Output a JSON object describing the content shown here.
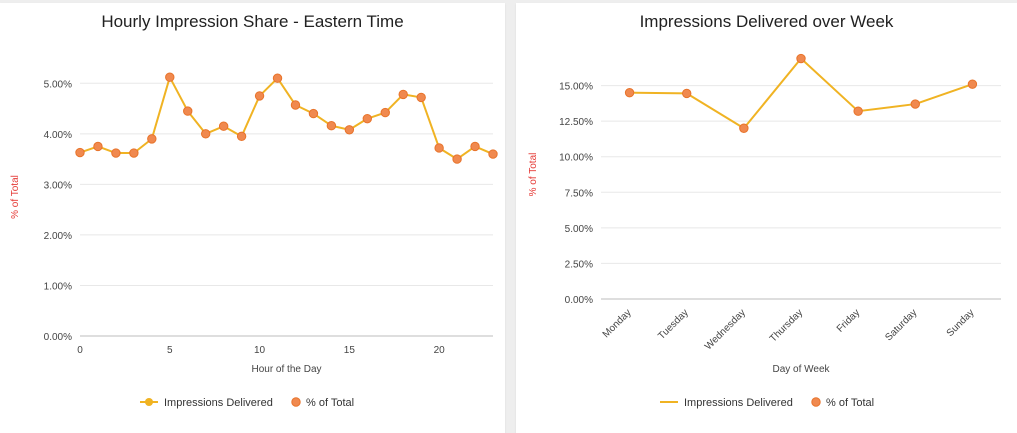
{
  "chart_data": [
    {
      "type": "line",
      "title": "Hourly Impression Share - Eastern Time",
      "xlabel": "Hour of the Day",
      "ylabel": "% of Total",
      "x": [
        0,
        1,
        2,
        3,
        4,
        5,
        6,
        7,
        8,
        9,
        10,
        11,
        12,
        13,
        14,
        15,
        16,
        17,
        18,
        19,
        20,
        21,
        22,
        23
      ],
      "xticks": [
        0,
        5,
        10,
        15,
        20
      ],
      "yticks": [
        "0.00%",
        "1.00%",
        "2.00%",
        "3.00%",
        "4.00%",
        "5.00%"
      ],
      "ylim": [
        0,
        5.5
      ],
      "series": [
        {
          "name": "Impressions Delivered",
          "style": "line",
          "values": [
            3.63,
            3.75,
            3.62,
            3.62,
            3.9,
            5.12,
            4.45,
            4.0,
            4.15,
            3.95,
            4.75,
            5.1,
            4.57,
            4.4,
            4.16,
            4.08,
            4.3,
            4.42,
            4.78,
            4.72,
            3.72,
            3.5,
            3.75,
            3.6
          ]
        },
        {
          "name": "% of Total",
          "style": "points",
          "values": [
            3.63,
            3.75,
            3.62,
            3.62,
            3.9,
            5.12,
            4.45,
            4.0,
            4.15,
            3.95,
            4.75,
            5.1,
            4.57,
            4.4,
            4.16,
            4.08,
            4.3,
            4.42,
            4.78,
            4.72,
            3.72,
            3.5,
            3.75,
            3.6
          ]
        }
      ],
      "legend": [
        {
          "label": "Impressions Delivered",
          "marker": "line-dot"
        },
        {
          "label": "% of Total",
          "marker": "dot"
        }
      ],
      "legend_position": "bottom",
      "colors": {
        "line": "#f0b323",
        "point": "#f0894f",
        "point_stroke": "#e8732a",
        "ylabel": "#e53935"
      }
    },
    {
      "type": "line",
      "title": "Impressions Delivered over Week",
      "xlabel": "Day of Week",
      "ylabel": "% of Total",
      "categories": [
        "Monday",
        "Tuesday",
        "Wednesday",
        "Thursday",
        "Friday",
        "Saturday",
        "Sunday"
      ],
      "yticks": [
        "0.00%",
        "2.50%",
        "5.00%",
        "7.50%",
        "10.00%",
        "12.50%",
        "15.00%"
      ],
      "ylim": [
        0,
        17.5
      ],
      "series": [
        {
          "name": "Impressions Delivered",
          "style": "line",
          "values": [
            14.5,
            14.45,
            12.0,
            16.9,
            13.2,
            13.7,
            15.1
          ]
        },
        {
          "name": "% of Total",
          "style": "points",
          "values": [
            14.5,
            14.45,
            12.0,
            16.9,
            13.2,
            13.7,
            15.1
          ]
        }
      ],
      "legend": [
        {
          "label": "Impressions Delivered",
          "marker": "line"
        },
        {
          "label": "% of Total",
          "marker": "dot"
        }
      ],
      "legend_position": "bottom",
      "colors": {
        "line": "#f0b323",
        "point": "#f0894f",
        "point_stroke": "#e8732a",
        "ylabel": "#e53935"
      }
    }
  ]
}
